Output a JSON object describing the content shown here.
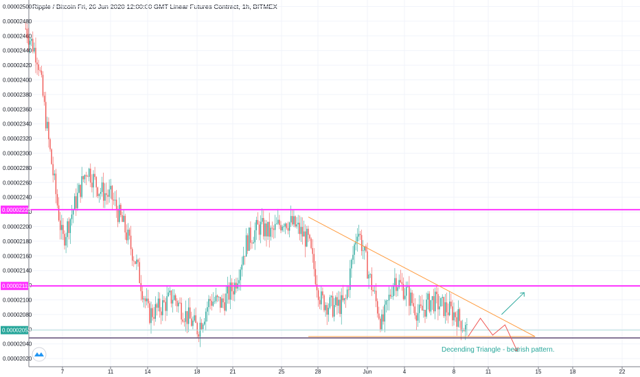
{
  "header": {
    "title": "Ripple / Bitcoin Fri, 26 Jun 2020 12:00:00 GMT Linear Futures Contract, 1h, BITMEX"
  },
  "colors": {
    "up": "#26a69a",
    "down": "#ef5350",
    "resistance": "#ff33ff",
    "trendline": "#ff9a3c",
    "support_line": "#5d4a74",
    "note": "#26a69a",
    "projection_up": "#26a69a",
    "projection_down": "#ef5350"
  },
  "icons": {
    "logo": "tradingview-cloud-icon"
  },
  "chart_data": {
    "type": "candlestick",
    "title": "Ripple / Bitcoin Fri, 26 Jun 2020 12:00:00 GMT Linear Futures Contract, 1h, BITMEX",
    "ylim": [
      2.02e-05,
      2.5e-05
    ],
    "grid": true,
    "y_ticks": [
      "0.00002500",
      "0.00002480",
      "0.00002460",
      "0.00002440",
      "0.00002420",
      "0.00002400",
      "0.00002380",
      "0.00002360",
      "0.00002340",
      "0.00002320",
      "0.00002300",
      "0.00002280",
      "0.00002260",
      "0.00002240",
      "0.00002220",
      "0.00002200",
      "0.00002180",
      "0.00002160",
      "0.00002140",
      "0.00002120",
      "0.00002100",
      "0.00002080",
      "0.00002060",
      "0.00002040",
      "0.00002020"
    ],
    "x_ticks": [
      "7",
      "11",
      "14",
      "18",
      "21",
      "25",
      "28",
      "Jun",
      "4",
      "8",
      "11",
      "15",
      "18",
      "22"
    ],
    "price_path": [
      [
        "2020-06-04",
        2.47e-05
      ],
      [
        "2020-06-05",
        2.43e-05
      ],
      [
        "2020-06-06",
        2.3e-05
      ],
      [
        "2020-06-07",
        2.18e-05
      ],
      [
        "2020-06-08",
        2.23e-05
      ],
      [
        "2020-06-09",
        2.28e-05
      ],
      [
        "2020-06-10",
        2.25e-05
      ],
      [
        "2020-06-11",
        2.24e-05
      ],
      [
        "2020-06-12",
        2.2e-05
      ],
      [
        "2020-06-13",
        2.15e-05
      ],
      [
        "2020-06-14",
        2.08e-05
      ],
      [
        "2020-06-15",
        2.09e-05
      ],
      [
        "2020-06-16",
        2.105e-05
      ],
      [
        "2020-06-17",
        2.08e-05
      ],
      [
        "2020-06-18",
        2.06e-05
      ],
      [
        "2020-06-19",
        2.1e-05
      ],
      [
        "2020-06-20",
        2.095e-05
      ],
      [
        "2020-06-21",
        2.12e-05
      ],
      [
        "2020-06-22",
        2.18e-05
      ],
      [
        "2020-06-23",
        2.2e-05
      ],
      [
        "2020-06-24",
        2.19e-05
      ],
      [
        "2020-06-25",
        2.21e-05
      ],
      [
        "2020-06-26",
        2.2e-05
      ],
      [
        "2020-06-27",
        2.18e-05
      ],
      [
        "2020-06-28",
        2.1e-05
      ],
      [
        "2020-06-29",
        2.09e-05
      ],
      [
        "2020-06-30",
        2.095e-05
      ],
      [
        "2020-07-01",
        2.2e-05
      ],
      [
        "2020-07-02",
        2.13e-05
      ],
      [
        "2020-07-03",
        2.065e-05
      ],
      [
        "2020-07-04",
        2.13e-05
      ],
      [
        "2020-07-05",
        2.11e-05
      ],
      [
        "2020-07-06",
        2.08e-05
      ],
      [
        "2020-07-07",
        2.1e-05
      ],
      [
        "2020-07-08",
        2.09e-05
      ],
      [
        "2020-07-09",
        2.08e-05
      ],
      [
        "2020-07-10",
        2.055e-05
      ]
    ],
    "levels": [
      {
        "name": "resistance-upper",
        "value": 2.223e-05,
        "label": "0.00002223"
      },
      {
        "name": "resistance-lower",
        "value": 2.119e-05,
        "label": "0.00002119"
      },
      {
        "name": "current-price",
        "value": 2.055e-05,
        "label": "0.00002055"
      },
      {
        "name": "support",
        "value": 2.05e-05,
        "label": ""
      }
    ],
    "trendline": {
      "from": [
        "2020-06-27",
        2.213e-05
      ],
      "to": [
        "2020-07-15",
        2.05e-05
      ]
    },
    "support_line": {
      "from": [
        "2020-06-27",
        2.05e-05
      ],
      "to": [
        "2020-07-15",
        2.05e-05
      ]
    },
    "projection": {
      "down_path": [
        [
          "2020-07-10",
          2.05e-05
        ],
        [
          "2020-07-11",
          2.075e-05
        ],
        [
          "2020-07-12",
          2.052e-05
        ],
        [
          "2020-07-13",
          2.066e-05
        ],
        [
          "2020-07-14",
          2.03e-05
        ]
      ],
      "up_arrow": {
        "from": [
          "2020-07-13",
          2.08e-05
        ],
        "to": [
          "2020-07-14",
          2.11e-05
        ]
      }
    },
    "annotations": [
      "Decending Triangle - bearish pattern."
    ]
  }
}
